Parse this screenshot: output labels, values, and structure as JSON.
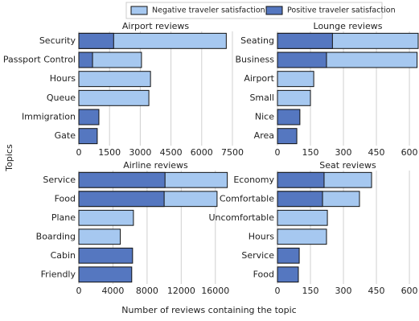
{
  "figure": {
    "xlabel": "Number of reviews containing the topic",
    "ylabel": "Topics"
  },
  "chart_data": [
    {
      "type": "bar",
      "orientation": "horizontal",
      "title": "Airport reviews",
      "categories": [
        "Security",
        "Passport Control",
        "Hours",
        "Queue",
        "Immigration",
        "Gate"
      ],
      "series": [
        {
          "name": "Negative traveler satisfaction",
          "color": "#a6c8f0",
          "values": [
            7200,
            3060,
            3500,
            3420,
            null,
            null
          ]
        },
        {
          "name": "Positive traveler satisfaction",
          "color": "#5577c0",
          "values": [
            1700,
            670,
            null,
            null,
            980,
            900
          ]
        }
      ],
      "xlim": [
        0,
        7500
      ],
      "xticks": [
        0,
        1500,
        3000,
        4500,
        6000,
        7500
      ],
      "grid": true
    },
    {
      "type": "bar",
      "orientation": "horizontal",
      "title": "Lounge reviews",
      "categories": [
        "Seating",
        "Business",
        "Airport",
        "Small",
        "Nice",
        "Area"
      ],
      "series": [
        {
          "name": "Negative traveler satisfaction",
          "color": "#a6c8f0",
          "values": [
            640,
            635,
            165,
            150,
            null,
            null
          ]
        },
        {
          "name": "Positive traveler satisfaction",
          "color": "#5577c0",
          "values": [
            250,
            223,
            null,
            null,
            102,
            88
          ]
        }
      ],
      "xlim": [
        0,
        640
      ],
      "xticks": [
        0,
        150,
        300,
        450,
        600
      ],
      "grid": true
    },
    {
      "type": "bar",
      "orientation": "horizontal",
      "title": "Airline reviews",
      "categories": [
        "Service",
        "Food",
        "Plane",
        "Boarding",
        "Cabin",
        "Friendly"
      ],
      "series": [
        {
          "name": "Negative traveler satisfaction",
          "color": "#a6c8f0",
          "values": [
            17400,
            16200,
            6400,
            4860,
            null,
            null
          ]
        },
        {
          "name": "Positive traveler satisfaction",
          "color": "#5577c0",
          "values": [
            10100,
            10000,
            null,
            null,
            6300,
            6200
          ]
        }
      ],
      "xlim": [
        0,
        18000
      ],
      "xticks": [
        0,
        4000,
        8000,
        12000,
        16000
      ],
      "grid": true
    },
    {
      "type": "bar",
      "orientation": "horizontal",
      "title": "Seat reviews",
      "categories": [
        "Economy",
        "Comfortable",
        "Uncomfortable",
        "Hours",
        "Service",
        "Food"
      ],
      "series": [
        {
          "name": "Negative traveler satisfaction",
          "color": "#a6c8f0",
          "values": [
            428,
            373,
            227,
            223,
            null,
            null
          ]
        },
        {
          "name": "Positive traveler satisfaction",
          "color": "#5577c0",
          "values": [
            212,
            205,
            null,
            null,
            99,
            95
          ]
        }
      ],
      "xlim": [
        0,
        640
      ],
      "xticks": [
        0,
        150,
        300,
        450,
        600
      ],
      "grid": true
    }
  ]
}
